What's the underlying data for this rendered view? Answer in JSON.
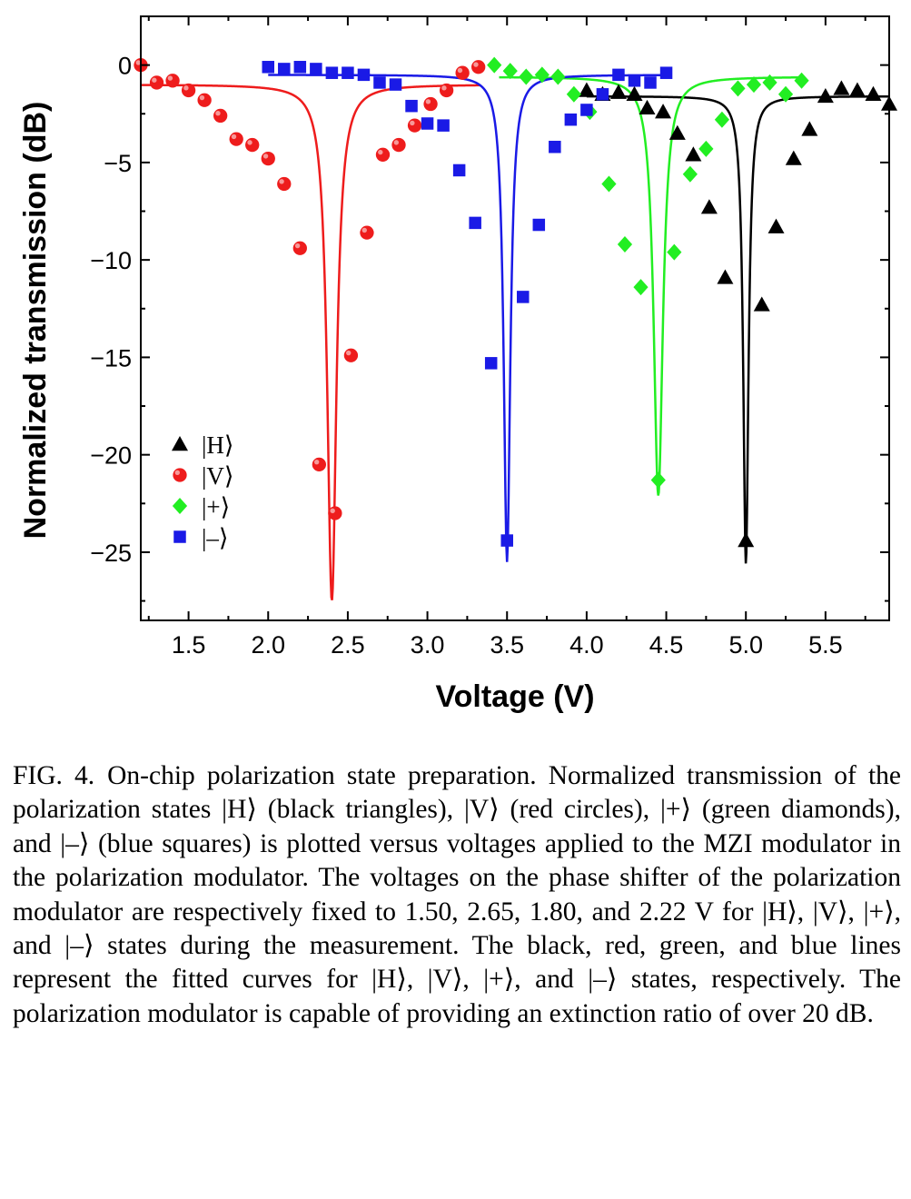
{
  "chart_data": {
    "type": "scatter",
    "xlabel": "Voltage (V)",
    "ylabel": "Normalized transmission (dB)",
    "xlim": [
      1.2,
      5.9
    ],
    "ylim": [
      -28.5,
      2.5
    ],
    "x_ticks": [
      1.5,
      2.0,
      2.5,
      3.0,
      3.5,
      4.0,
      4.5,
      5.0,
      5.5
    ],
    "x_tick_labels": [
      "1.5",
      "2.0",
      "2.5",
      "3.0",
      "3.5",
      "4.0",
      "4.5",
      "5.0",
      "5.5"
    ],
    "y_ticks": [
      0,
      -5,
      -10,
      -15,
      -20,
      -25
    ],
    "y_tick_labels": [
      "0",
      "−5",
      "−10",
      "−15",
      "−20",
      "−25"
    ],
    "grid": false,
    "legend_position": "bottom-left",
    "series": [
      {
        "name": "|H⟩",
        "color": "#000000",
        "marker": "triangle",
        "points": [
          [
            4.0,
            -1.3
          ],
          [
            4.1,
            -1.5
          ],
          [
            4.2,
            -1.4
          ],
          [
            4.3,
            -1.5
          ],
          [
            4.38,
            -2.2
          ],
          [
            4.48,
            -2.4
          ],
          [
            4.57,
            -3.5
          ],
          [
            4.67,
            -4.6
          ],
          [
            4.77,
            -7.3
          ],
          [
            4.87,
            -10.9
          ],
          [
            5.0,
            -24.4
          ],
          [
            5.1,
            -12.3
          ],
          [
            5.19,
            -8.3
          ],
          [
            5.3,
            -4.8
          ],
          [
            5.4,
            -3.3
          ],
          [
            5.5,
            -1.6
          ],
          [
            5.6,
            -1.2
          ],
          [
            5.7,
            -1.3
          ],
          [
            5.8,
            -1.5
          ],
          [
            5.9,
            -2.0
          ]
        ],
        "fit_center": 5.0,
        "fit_baseline": -1.6,
        "fit_depth": 24.0,
        "fit_width": 0.02,
        "fit_x_range": [
          4.0,
          5.9
        ]
      },
      {
        "name": "|V⟩",
        "color": "#ee1c1c",
        "marker": "circle",
        "points": [
          [
            1.2,
            0.0
          ],
          [
            1.3,
            -0.9
          ],
          [
            1.4,
            -0.8
          ],
          [
            1.5,
            -1.3
          ],
          [
            1.6,
            -1.8
          ],
          [
            1.7,
            -2.6
          ],
          [
            1.8,
            -3.8
          ],
          [
            1.9,
            -4.1
          ],
          [
            2.0,
            -4.8
          ],
          [
            2.1,
            -6.1
          ],
          [
            2.2,
            -9.4
          ],
          [
            2.32,
            -20.5
          ],
          [
            2.42,
            -23.0
          ],
          [
            2.52,
            -14.9
          ],
          [
            2.62,
            -8.6
          ],
          [
            2.72,
            -4.6
          ],
          [
            2.82,
            -4.1
          ],
          [
            2.92,
            -3.1
          ],
          [
            3.02,
            -2.0
          ],
          [
            3.12,
            -1.3
          ],
          [
            3.22,
            -0.4
          ],
          [
            3.32,
            -0.1
          ]
        ],
        "fit_center": 2.4,
        "fit_baseline": -1.0,
        "fit_depth": 26.5,
        "fit_width": 0.035,
        "fit_x_range": [
          1.2,
          3.33
        ]
      },
      {
        "name": "|+⟩",
        "color": "#22ee22",
        "marker": "diamond",
        "points": [
          [
            3.42,
            0.0
          ],
          [
            3.52,
            -0.3
          ],
          [
            3.62,
            -0.6
          ],
          [
            3.72,
            -0.5
          ],
          [
            3.82,
            -0.6
          ],
          [
            3.92,
            -1.5
          ],
          [
            4.02,
            -2.4
          ],
          [
            4.14,
            -6.1
          ],
          [
            4.24,
            -9.2
          ],
          [
            4.34,
            -11.4
          ],
          [
            4.45,
            -21.3
          ],
          [
            4.55,
            -9.6
          ],
          [
            4.65,
            -5.6
          ],
          [
            4.75,
            -4.3
          ],
          [
            4.85,
            -2.8
          ],
          [
            4.95,
            -1.2
          ],
          [
            5.05,
            -1.0
          ],
          [
            5.15,
            -0.9
          ],
          [
            5.25,
            -1.5
          ],
          [
            5.35,
            -0.8
          ]
        ],
        "fit_center": 4.45,
        "fit_baseline": -0.6,
        "fit_depth": 21.5,
        "fit_width": 0.035,
        "fit_x_range": [
          3.45,
          5.35
        ]
      },
      {
        "name": "|–⟩",
        "color": "#1a1ae6",
        "marker": "square",
        "points": [
          [
            2.0,
            -0.1
          ],
          [
            2.1,
            -0.2
          ],
          [
            2.2,
            -0.1
          ],
          [
            2.3,
            -0.2
          ],
          [
            2.4,
            -0.4
          ],
          [
            2.5,
            -0.4
          ],
          [
            2.6,
            -0.5
          ],
          [
            2.7,
            -0.9
          ],
          [
            2.8,
            -1.0
          ],
          [
            2.9,
            -2.1
          ],
          [
            3.0,
            -3.0
          ],
          [
            3.1,
            -3.1
          ],
          [
            3.2,
            -5.4
          ],
          [
            3.3,
            -8.1
          ],
          [
            3.4,
            -15.3
          ],
          [
            3.5,
            -24.4
          ],
          [
            3.6,
            -11.9
          ],
          [
            3.7,
            -8.2
          ],
          [
            3.8,
            -4.2
          ],
          [
            3.9,
            -2.8
          ],
          [
            4.0,
            -2.3
          ],
          [
            4.1,
            -1.5
          ],
          [
            4.2,
            -0.5
          ],
          [
            4.3,
            -0.8
          ],
          [
            4.4,
            -0.9
          ],
          [
            4.5,
            -0.4
          ]
        ],
        "fit_center": 3.5,
        "fit_baseline": -0.5,
        "fit_depth": 25.0,
        "fit_width": 0.025,
        "fit_x_range": [
          2.0,
          4.5
        ]
      }
    ]
  },
  "caption": {
    "label": "FIG. 4.",
    "text": "On-chip polarization state preparation. Normalized transmission of the polarization states |H⟩ (black triangles), |V⟩ (red circles), |+⟩ (green diamonds), and |–⟩ (blue squares) is plotted versus voltages applied to the MZI modulator in the polarization modulator. The voltages on the phase shifter of the polarization modulator are respectively fixed to 1.50, 2.65, 1.80, and 2.22 V for |H⟩, |V⟩, |+⟩, and |–⟩ states during the measurement. The black, red, green, and blue lines represent the fitted curves for |H⟩, |V⟩, |+⟩, and |–⟩ states, respectively. The polarization modulator is capable of providing an extinction ratio of over 20 dB."
  }
}
